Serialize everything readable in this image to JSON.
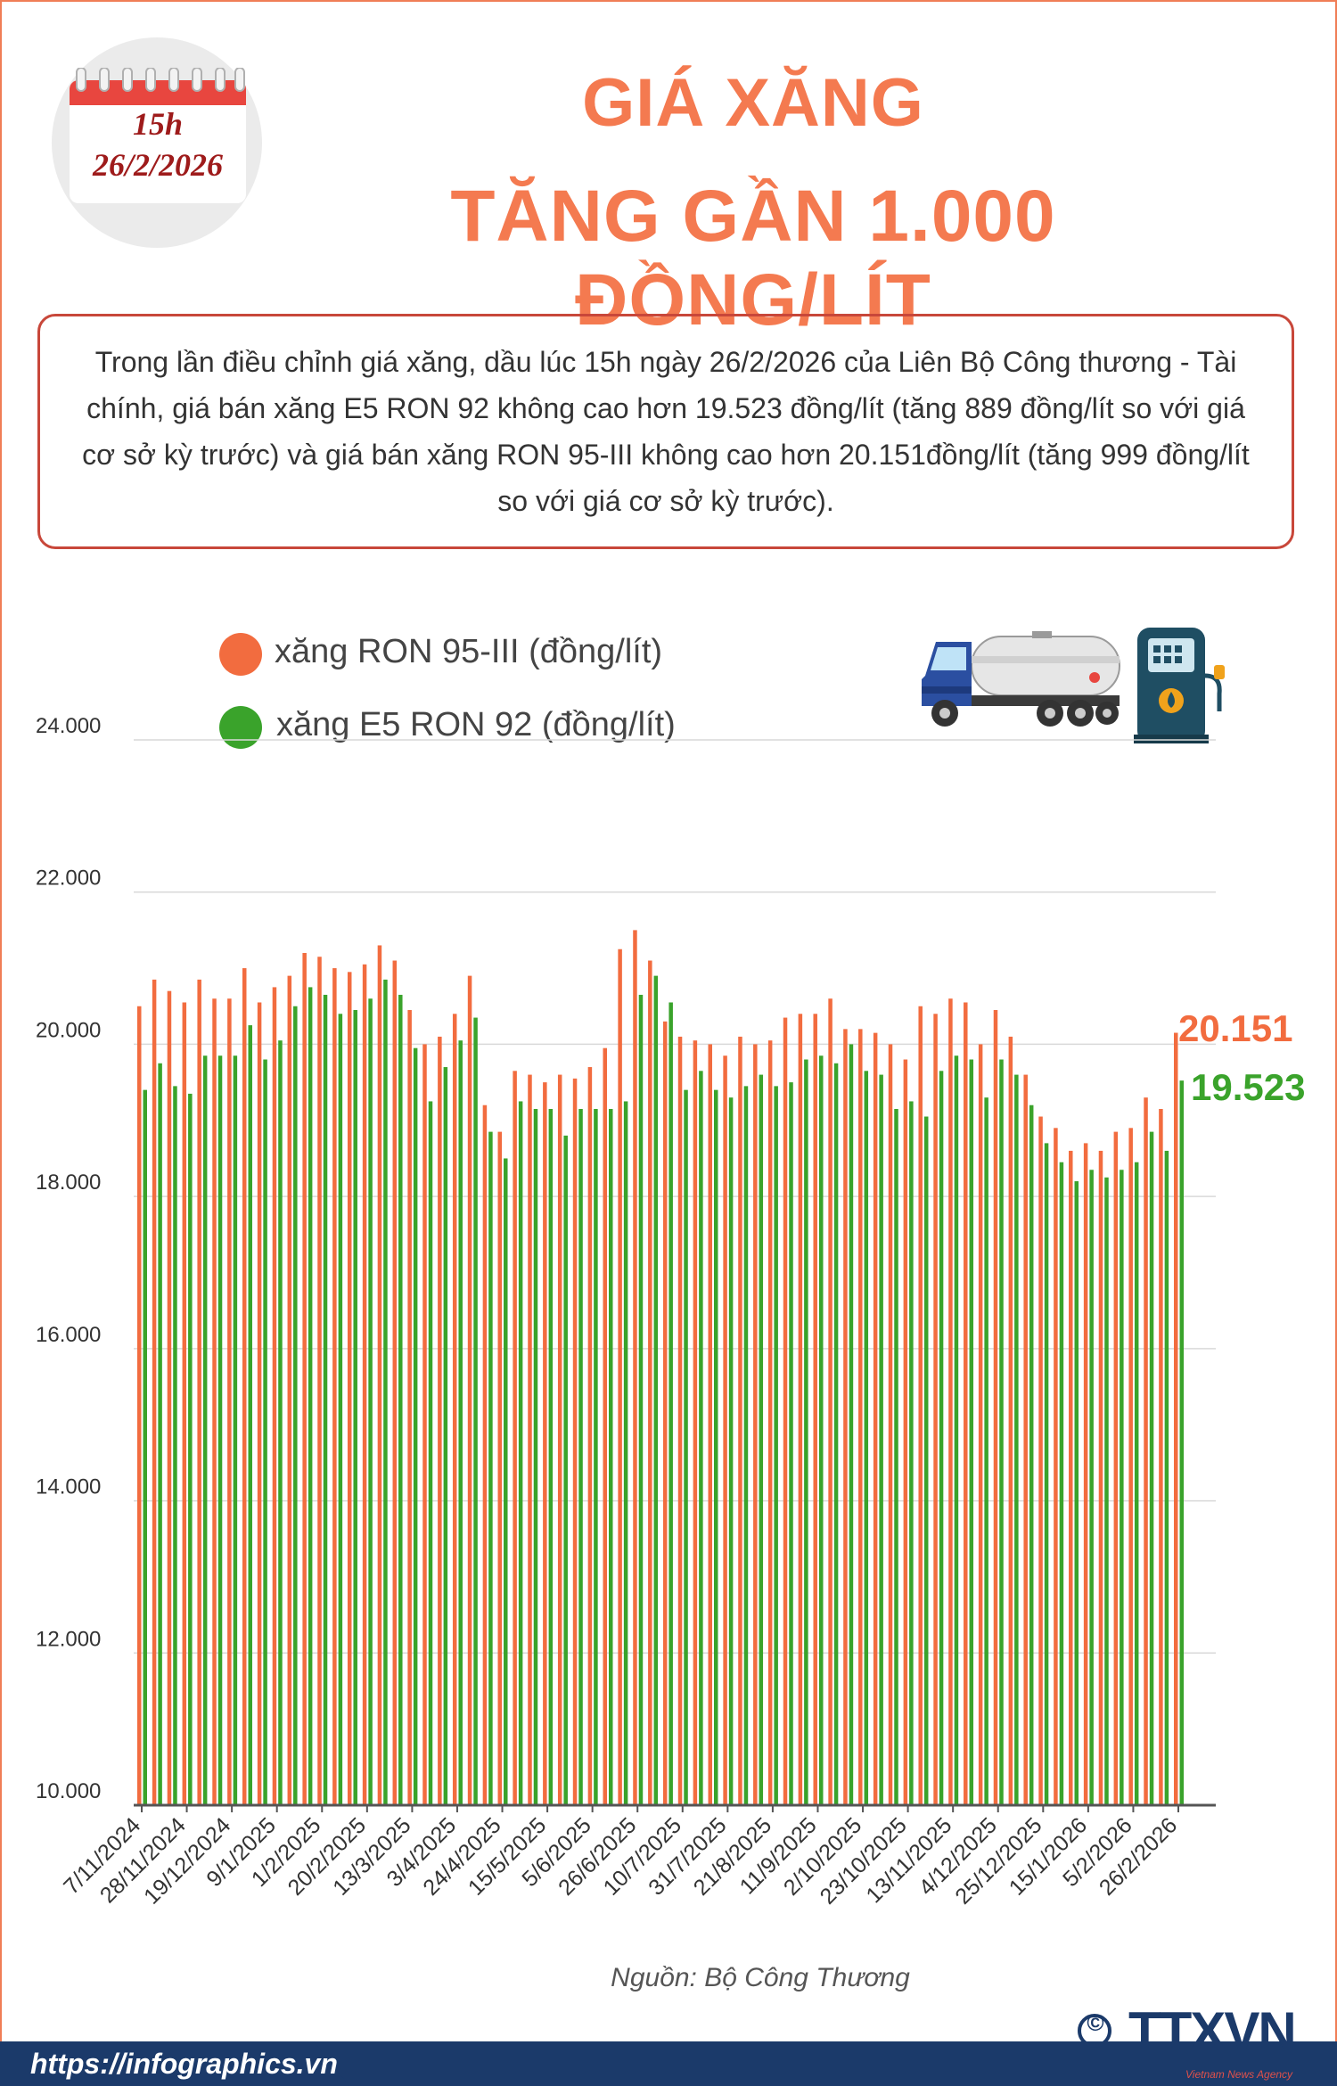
{
  "header": {
    "time": "15h",
    "date": "26/2/2026",
    "title_line1": "GIÁ XĂNG",
    "title_line2": "TĂNG GẦN 1.000 ĐỒNG/LÍT"
  },
  "summary": "Trong lần điều chỉnh giá xăng, dầu lúc 15h ngày 26/2/2026 của Liên Bộ Công thương - Tài chính, giá bán xăng E5 RON 92 không cao hơn 19.523 đồng/lít (tăng 889 đồng/lít so với giá cơ sở kỳ trước) và giá bán xăng RON 95-III không cao hơn 20.151đồng/lít (tăng 999 đồng/lít so với giá cơ sở kỳ trước).",
  "colors": {
    "ron95": "#f26c3f",
    "e5": "#3aa32b",
    "title": "#f47a50",
    "frame": "#f07e56",
    "summary_border": "#c8473a",
    "footer": "#1b3a6a"
  },
  "icons": {
    "calendar": "calendar-icon",
    "truck": "tanker-truck-icon",
    "pump": "fuel-pump-icon",
    "logo": "ttxvn-logo"
  },
  "chart_data": {
    "type": "bar",
    "ylim": [
      10000,
      24000
    ],
    "yticks": [
      "10.000",
      "12.000",
      "14.000",
      "16.000",
      "18.000",
      "20.000",
      "22.000",
      "24.000"
    ],
    "ytick_values": [
      10000,
      12000,
      14000,
      16000,
      18000,
      20000,
      22000,
      24000
    ],
    "grid": true,
    "legend_position": "top-left",
    "xtick_labels": [
      "7/11/2024",
      "28/11/2024",
      "19/12/2024",
      "9/1/2025",
      "1/2/2025",
      "20/2/2025",
      "13/3/2025",
      "3/4/2025",
      "24/4/2025",
      "15/5/2025",
      "5/6/2025",
      "26/6/2025",
      "10/7/2025",
      "31/7/2025",
      "21/8/2025",
      "11/9/2025",
      "2/10/2025",
      "23/10/2025",
      "13/11/2025",
      "4/12/2025",
      "25/12/2025",
      "15/1/2026",
      "5/2/2026",
      "26/2/2026"
    ],
    "xtick_positions": [
      0,
      3,
      6,
      9,
      12,
      15,
      18,
      21,
      24,
      27,
      30,
      33,
      36,
      39,
      42,
      45,
      48,
      51,
      54,
      57,
      60,
      63,
      66,
      69
    ],
    "series": [
      {
        "name": "xăng RON 95-III (đồng/lít)",
        "values": [
          20500,
          20850,
          20700,
          20550,
          20850,
          20600,
          20600,
          21000,
          20550,
          20750,
          20900,
          21200,
          21150,
          21000,
          20950,
          21050,
          21300,
          21100,
          20450,
          20000,
          20100,
          20400,
          20900,
          19200,
          18850,
          19650,
          19600,
          19500,
          19600,
          19550,
          19700,
          19950,
          21250,
          21500,
          21100,
          20300,
          20100,
          20050,
          20000,
          19850,
          20100,
          20000,
          20050,
          20350,
          20400,
          20400,
          20600,
          20200,
          20200,
          20150,
          20000,
          19800,
          20500,
          20400,
          20600,
          20550,
          20000,
          20450,
          20100,
          19600,
          19050,
          18900,
          18600,
          18700,
          18600,
          18850,
          18900,
          19300,
          19150,
          20151
        ]
      },
      {
        "name": "xăng E5 RON 92 (đồng/lít)",
        "values": [
          19400,
          19750,
          19450,
          19350,
          19850,
          19850,
          19850,
          20250,
          19800,
          20050,
          20500,
          20750,
          20650,
          20400,
          20450,
          20600,
          20850,
          20650,
          19950,
          19250,
          19700,
          20050,
          20350,
          18850,
          18500,
          19250,
          19150,
          19150,
          18800,
          19150,
          19150,
          19150,
          19250,
          20650,
          20900,
          20550,
          19400,
          19650,
          19400,
          19300,
          19450,
          19600,
          19450,
          19500,
          19800,
          19850,
          19750,
          20000,
          19650,
          19600,
          19150,
          19250,
          19050,
          19650,
          19850,
          19800,
          19300,
          19800,
          19600,
          19200,
          18700,
          18450,
          18200,
          18350,
          18250,
          18350,
          18450,
          18850,
          18600,
          19523
        ]
      }
    ],
    "end_labels": [
      "20.151",
      "19.523"
    ]
  },
  "source": "Nguồn: Bộ Công Thương",
  "footer": {
    "url": "https://infographics.vn",
    "agency_name": "TTXVN",
    "agency_sub": "Vietnam News Agency",
    "copyright": "©"
  }
}
